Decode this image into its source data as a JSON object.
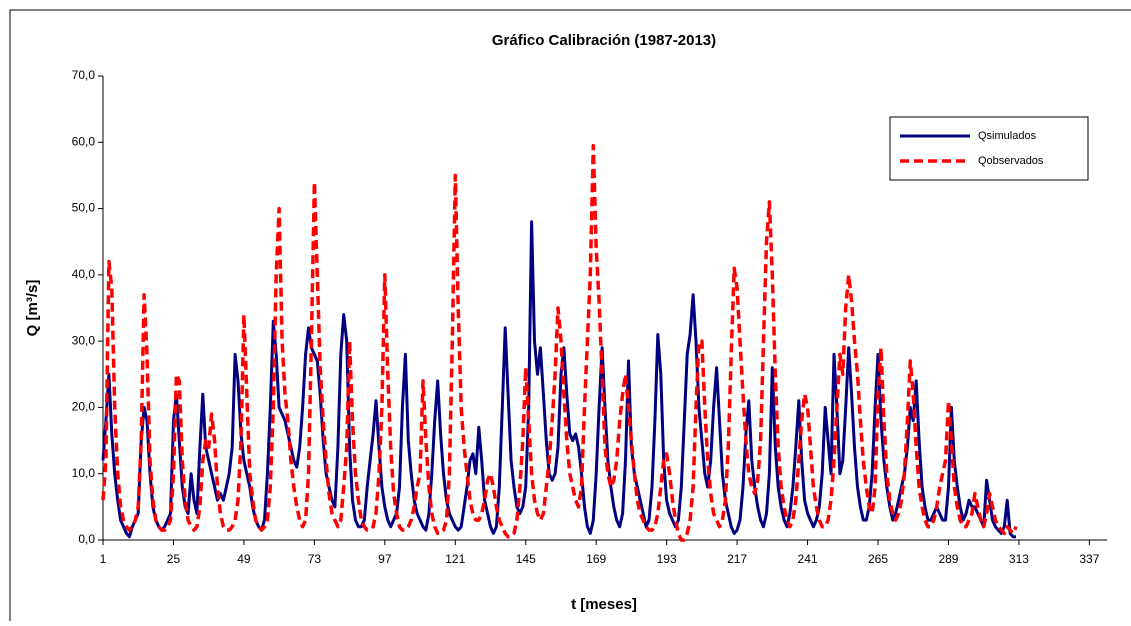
{
  "chart_data": {
    "type": "line",
    "title": "Gráfico Calibración (1987-2013)",
    "xlabel": "t [meses]",
    "ylabel": "Q [m³/s]",
    "xlim": [
      1,
      343
    ],
    "ylim": [
      0,
      70
    ],
    "xticks": [
      1,
      25,
      49,
      73,
      97,
      121,
      145,
      169,
      193,
      217,
      241,
      265,
      289,
      313,
      337
    ],
    "yticks": [
      {
        "value": 0,
        "label": "0,0"
      },
      {
        "value": 10,
        "label": "10,0"
      },
      {
        "value": 20,
        "label": "20,0"
      },
      {
        "value": 30,
        "label": "30,0"
      },
      {
        "value": 40,
        "label": "40,0"
      },
      {
        "value": 50,
        "label": "50,0"
      },
      {
        "value": 60,
        "label": "60,0"
      },
      {
        "value": 70,
        "label": "70,0"
      }
    ],
    "grid": false,
    "legend": "upper right",
    "x": [
      1,
      2,
      3,
      4,
      5,
      6,
      7,
      8,
      9,
      10,
      11,
      12,
      13,
      14,
      15,
      16,
      17,
      18,
      19,
      20,
      21,
      22,
      23,
      24,
      25,
      26,
      27,
      28,
      29,
      30,
      31,
      32,
      33,
      34,
      35,
      36,
      37,
      38,
      39,
      40,
      41,
      42,
      43,
      44,
      45,
      46,
      47,
      48,
      49,
      50,
      51,
      52,
      53,
      54,
      55,
      56,
      57,
      58,
      59,
      60,
      61,
      62,
      63,
      64,
      65,
      66,
      67,
      68,
      69,
      70,
      71,
      72,
      73,
      74,
      75,
      76,
      77,
      78,
      79,
      80,
      81,
      82,
      83,
      84,
      85,
      86,
      87,
      88,
      89,
      90,
      91,
      92,
      93,
      94,
      95,
      96,
      97,
      98,
      99,
      100,
      101,
      102,
      103,
      104,
      105,
      106,
      107,
      108,
      109,
      110,
      111,
      112,
      113,
      114,
      115,
      116,
      117,
      118,
      119,
      120,
      121,
      122,
      123,
      124,
      125,
      126,
      127,
      128,
      129,
      130,
      131,
      132,
      133,
      134,
      135,
      136,
      137,
      138,
      139,
      140,
      141,
      142,
      143,
      144,
      145,
      146,
      147,
      148,
      149,
      150,
      151,
      152,
      153,
      154,
      155,
      156,
      157,
      158,
      159,
      160,
      161,
      162,
      163,
      164,
      165,
      166,
      167,
      168,
      169,
      170,
      171,
      172,
      173,
      174,
      175,
      176,
      177,
      178,
      179,
      180,
      181,
      182,
      183,
      184,
      185,
      186,
      187,
      188,
      189,
      190,
      191,
      192,
      193,
      194,
      195,
      196,
      197,
      198,
      199,
      200,
      201,
      202,
      203,
      204,
      205,
      206,
      207,
      208,
      209,
      210,
      211,
      212,
      213,
      214,
      215,
      216,
      217,
      218,
      219,
      220,
      221,
      222,
      223,
      224,
      225,
      226,
      227,
      228,
      229,
      230,
      231,
      232,
      233,
      234,
      235,
      236,
      237,
      238,
      239,
      240,
      241,
      242,
      243,
      244,
      245,
      246,
      247,
      248,
      249,
      250,
      251,
      252,
      253,
      254,
      255,
      256,
      257,
      258,
      259,
      260,
      261,
      262,
      263,
      264,
      265,
      266,
      267,
      268,
      269,
      270,
      271,
      272,
      273,
      274,
      275,
      276,
      277,
      278,
      279,
      280,
      281,
      282,
      283,
      284,
      285,
      286,
      287,
      288,
      289,
      290,
      291,
      292,
      293,
      294,
      295,
      296,
      297,
      298,
      299,
      300,
      301,
      302,
      303,
      304,
      305,
      306,
      307,
      308,
      309,
      310,
      311,
      312
    ],
    "series": [
      {
        "name": "Qsimulados",
        "color": "#000080",
        "dash": false,
        "values": [
          12,
          18,
          25,
          16,
          10,
          6,
          3,
          2,
          1,
          0.5,
          2,
          3,
          4,
          15,
          20,
          18,
          10,
          5,
          3,
          2,
          1.5,
          2,
          3,
          4,
          18,
          22,
          15,
          8,
          5,
          4,
          10,
          6,
          4,
          14,
          22,
          14,
          12,
          10,
          8,
          6,
          7,
          6,
          8,
          10,
          14,
          28,
          24,
          16,
          12,
          10,
          8,
          5,
          3,
          2,
          1.5,
          3,
          10,
          20,
          33,
          28,
          20,
          19,
          18,
          16,
          14,
          12,
          11,
          14,
          20,
          28,
          32,
          29,
          28,
          27,
          22,
          15,
          10,
          8,
          6,
          5,
          14,
          28,
          34,
          30,
          14,
          6,
          3,
          2,
          2,
          3,
          8,
          12,
          16,
          21,
          14,
          8,
          5,
          3,
          2,
          3,
          4,
          8,
          20,
          28,
          15,
          10,
          6,
          4,
          3,
          2,
          1.5,
          4,
          10,
          18,
          24,
          16,
          10,
          6,
          4,
          3,
          2,
          1.5,
          2,
          5,
          8,
          12,
          13,
          10,
          17,
          12,
          6,
          4,
          2,
          1,
          2,
          8,
          20,
          32,
          22,
          12,
          8,
          5,
          4,
          5,
          8,
          20,
          48,
          30,
          25,
          29,
          22,
          15,
          10,
          9,
          10,
          14,
          25,
          29,
          22,
          16,
          15,
          16,
          14,
          10,
          5,
          2,
          1,
          3,
          10,
          20,
          29,
          20,
          12,
          8,
          5,
          3,
          2,
          4,
          12,
          27,
          14,
          10,
          8,
          6,
          4,
          2,
          3,
          8,
          18,
          31,
          25,
          12,
          6,
          4,
          3,
          2,
          3,
          8,
          18,
          28,
          31,
          37,
          30,
          20,
          15,
          10,
          8,
          12,
          20,
          26,
          18,
          10,
          6,
          4,
          2,
          1,
          1.5,
          3,
          8,
          16,
          21,
          12,
          8,
          5,
          3,
          2,
          4,
          10,
          26,
          14,
          8,
          5,
          3,
          2,
          4,
          8,
          14,
          21,
          12,
          6,
          4,
          3,
          2,
          3,
          5,
          10,
          20,
          15,
          10,
          28,
          20,
          10,
          12,
          20,
          29,
          22,
          14,
          8,
          5,
          3,
          3,
          5,
          10,
          20,
          28,
          18,
          12,
          8,
          5,
          3,
          4,
          6,
          8,
          10,
          14,
          20,
          18,
          24,
          15,
          8,
          5,
          3,
          3,
          4,
          5,
          4,
          3,
          3,
          8,
          20,
          12,
          8,
          5,
          3,
          4,
          6,
          5,
          5,
          4,
          3,
          2,
          9,
          6,
          3,
          2,
          1.5,
          1,
          2,
          6,
          1,
          0.5,
          0.5
        ]
      },
      {
        "name": "Qobservados",
        "color": "#ff0000",
        "dash": true,
        "values": [
          6,
          12,
          42,
          38,
          20,
          10,
          5,
          3,
          2,
          1.5,
          2,
          3,
          5,
          15,
          37,
          28,
          12,
          6,
          3,
          2,
          1.5,
          1.5,
          2,
          3,
          10,
          25,
          24,
          12,
          6,
          3,
          2,
          1.5,
          2,
          5,
          12,
          15,
          14,
          19,
          15,
          8,
          4,
          2,
          1.5,
          1.5,
          2,
          3,
          6,
          15,
          34,
          22,
          10,
          6,
          3,
          2,
          1.5,
          2,
          3,
          8,
          20,
          40,
          50,
          30,
          22,
          18,
          12,
          8,
          5,
          3,
          2,
          3,
          10,
          30,
          54,
          40,
          26,
          18,
          12,
          7,
          4,
          3,
          2,
          3,
          8,
          14,
          30,
          18,
          10,
          6,
          3,
          2,
          1.5,
          1.5,
          2,
          4,
          10,
          20,
          40,
          25,
          14,
          7,
          4,
          2,
          1.5,
          1.5,
          2,
          3,
          5,
          8,
          10,
          24,
          15,
          8,
          4,
          2,
          1,
          1,
          1.5,
          3,
          10,
          30,
          55,
          35,
          20,
          14,
          10,
          6,
          4,
          3,
          3,
          4,
          6,
          9,
          10,
          8,
          5,
          3,
          2,
          1,
          0.5,
          0.5,
          1,
          3,
          8,
          15,
          26,
          18,
          10,
          6,
          4,
          3,
          4,
          8,
          12,
          18,
          25,
          35,
          30,
          22,
          15,
          10,
          8,
          6,
          5,
          8,
          20,
          30,
          40,
          59.5,
          44,
          36,
          25,
          14,
          10,
          8,
          9,
          12,
          18,
          22,
          25,
          20,
          15,
          10,
          6,
          4,
          3,
          2,
          1.5,
          1.5,
          2,
          4,
          8,
          12,
          13,
          10,
          6,
          3,
          1,
          0,
          0,
          1,
          3,
          8,
          20,
          30,
          30,
          20,
          12,
          7,
          4,
          3,
          2,
          3,
          6,
          14,
          28,
          41,
          38,
          30,
          22,
          15,
          10,
          8,
          7,
          9,
          15,
          30,
          45,
          51,
          40,
          25,
          14,
          8,
          5,
          3,
          2,
          3,
          6,
          12,
          18,
          22,
          20,
          14,
          8,
          5,
          3,
          2,
          2,
          3,
          6,
          12,
          20,
          28,
          25,
          35,
          40,
          36,
          30,
          25,
          18,
          12,
          8,
          5,
          4,
          8,
          22,
          29,
          18,
          10,
          6,
          4,
          3,
          4,
          6,
          10,
          18,
          27,
          22,
          14,
          8,
          5,
          3,
          2,
          2,
          3,
          5,
          8,
          10,
          12,
          21,
          15,
          8,
          5,
          3,
          2,
          2,
          3,
          4,
          7,
          5,
          3,
          2,
          4,
          7,
          5,
          3,
          2,
          1.5,
          1,
          2,
          1.5,
          1,
          2
        ]
      }
    ]
  }
}
